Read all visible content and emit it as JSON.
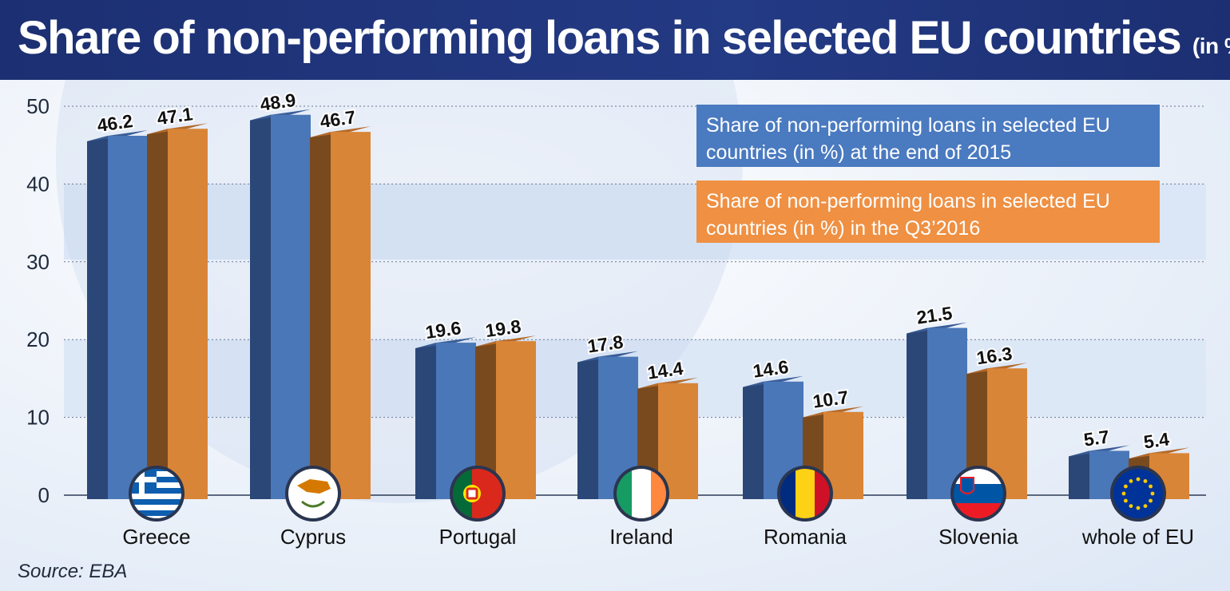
{
  "header": {
    "title": "Share of non-performing loans in selected EU countries",
    "unit": "(in %)"
  },
  "legend": [
    {
      "text": "Share of non-performing loans in selected EU countries (in %) at the end of 2015"
    },
    {
      "text": "Share of non-performing loans in selected EU countries (in %) in the Q3’2016"
    }
  ],
  "source": "Source: EBA",
  "colors": {
    "series_2015": "#4a7ac0",
    "series_q3_2016": "#ef9043",
    "header_bg": "#1c2f72"
  },
  "chart_data": {
    "type": "bar",
    "title": "Share of non-performing loans in selected EU countries",
    "xlabel": "",
    "ylabel": "",
    "ylim": [
      0,
      50
    ],
    "yticks": [
      0,
      10,
      20,
      30,
      40,
      50
    ],
    "grid": true,
    "legend_position": "top-right",
    "categories": [
      "Greece",
      "Cyprus",
      "Portugal",
      "Ireland",
      "Romania",
      "Slovenia",
      "whole of EU"
    ],
    "category_icons": [
      "greece-flag-icon",
      "cyprus-flag-icon",
      "portugal-flag-icon",
      "ireland-flag-icon",
      "romania-flag-icon",
      "slovenia-flag-icon",
      "eu-flag-icon"
    ],
    "series": [
      {
        "name": "Share of non-performing loans in selected EU countries (in %) at the end of 2015",
        "color": "#4a7ac0",
        "values": [
          46.2,
          48.9,
          19.6,
          17.8,
          14.6,
          21.5,
          5.7
        ]
      },
      {
        "name": "Share of non-performing loans in selected EU countries (in %) in the Q3’2016",
        "color": "#ef9043",
        "values": [
          47.1,
          46.7,
          19.8,
          14.4,
          10.7,
          16.3,
          5.4
        ]
      }
    ]
  }
}
